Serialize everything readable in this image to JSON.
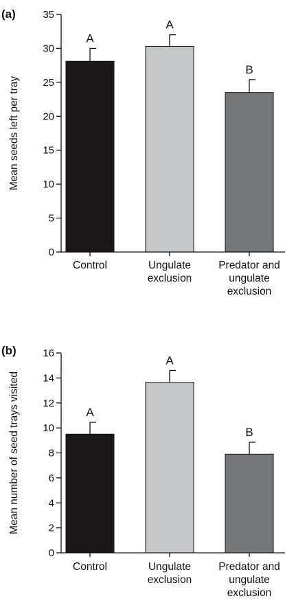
{
  "chart_data": [
    {
      "type": "bar",
      "panel_label": "(a)",
      "categories": [
        [
          "Control"
        ],
        [
          "Ungulate",
          "exclusion"
        ],
        [
          "Predator and",
          "ungulate",
          "exclusion"
        ]
      ],
      "values": [
        28.1,
        30.3,
        23.5
      ],
      "errors": [
        1.9,
        1.7,
        1.9
      ],
      "significance": [
        "A",
        "A",
        "B"
      ],
      "bar_colors": [
        "#1c1819",
        "#c6c7c9",
        "#75767a"
      ],
      "ylabel": "Mean seeds left per tray",
      "xlabel": "",
      "ylim": [
        0,
        35
      ],
      "yticks": [
        0,
        5,
        10,
        15,
        20,
        25,
        30,
        35
      ],
      "grid": false,
      "legend": "none"
    },
    {
      "type": "bar",
      "panel_label": "(b)",
      "categories": [
        [
          "Control"
        ],
        [
          "Ungulate",
          "exclusion"
        ],
        [
          "Predator and",
          "ungulate",
          "exclusion"
        ]
      ],
      "values": [
        9.5,
        13.65,
        7.9
      ],
      "errors": [
        0.95,
        0.95,
        0.95
      ],
      "significance": [
        "A",
        "A",
        "B"
      ],
      "bar_colors": [
        "#1c1819",
        "#c6c7c9",
        "#75767a"
      ],
      "ylabel": "Mean number of seed trays visited",
      "xlabel": "",
      "ylim": [
        0,
        16
      ],
      "yticks": [
        0,
        2,
        4,
        6,
        8,
        10,
        12,
        14,
        16
      ],
      "grid": false,
      "legend": "none"
    }
  ]
}
